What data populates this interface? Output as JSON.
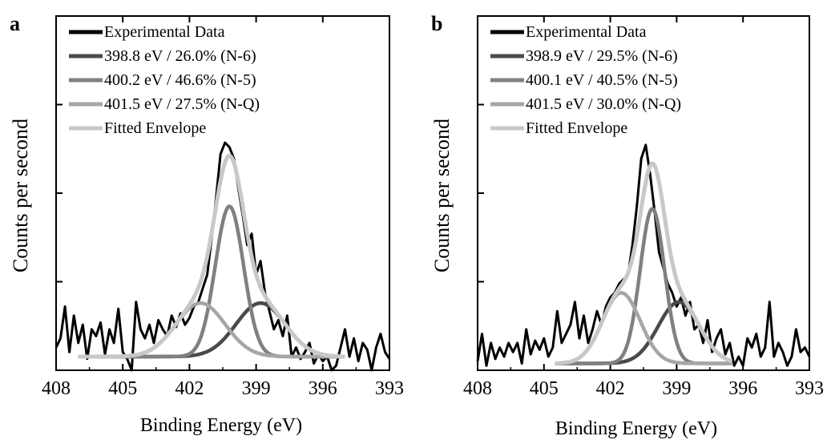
{
  "chart_data": [
    {
      "panel_label": "a",
      "type": "line",
      "xlabel": "Binding Energy (eV)",
      "ylabel": "Counts per second",
      "xlim": [
        408,
        393
      ],
      "x_reversed": true,
      "xticks": [
        408,
        405,
        402,
        399,
        396,
        393
      ],
      "y_ticks_shown": false,
      "ylim": [
        0,
        1.0
      ],
      "legend_position": "top-left",
      "series": [
        {
          "name": "Experimental Data",
          "color": "#000000",
          "x": [
            408.0,
            407.8,
            407.6,
            407.4,
            407.2,
            407.0,
            406.8,
            406.6,
            406.4,
            406.2,
            406.0,
            405.8,
            405.6,
            405.4,
            405.2,
            405.0,
            404.8,
            404.6,
            404.4,
            404.2,
            404.0,
            403.8,
            403.6,
            403.4,
            403.2,
            403.0,
            402.8,
            402.6,
            402.4,
            402.2,
            402.0,
            401.8,
            401.6,
            401.4,
            401.2,
            401.0,
            400.8,
            400.6,
            400.4,
            400.2,
            400.0,
            399.8,
            399.6,
            399.4,
            399.2,
            399.0,
            398.8,
            398.6,
            398.4,
            398.2,
            398.0,
            397.8,
            397.6,
            397.4,
            397.2,
            397.0,
            396.8,
            396.6,
            396.4,
            396.2,
            396.0,
            395.8,
            395.6,
            395.4,
            395.2,
            395.0,
            394.8,
            394.6,
            394.4,
            394.2,
            394.0,
            393.8,
            393.6,
            393.4,
            393.2,
            393.0
          ],
          "y": [
            0.1,
            0.14,
            0.28,
            0.08,
            0.24,
            0.12,
            0.2,
            0.05,
            0.18,
            0.15,
            0.21,
            0.07,
            0.18,
            0.12,
            0.27,
            0.08,
            0.05,
            -0.02,
            0.3,
            0.18,
            0.14,
            0.2,
            0.12,
            0.22,
            0.18,
            0.15,
            0.24,
            0.19,
            0.25,
            0.2,
            0.23,
            0.28,
            0.3,
            0.36,
            0.42,
            0.58,
            0.76,
            0.95,
            1.0,
            0.98,
            0.93,
            0.8,
            0.68,
            0.55,
            0.6,
            0.42,
            0.48,
            0.34,
            0.26,
            0.18,
            0.22,
            0.15,
            0.24,
            0.06,
            0.1,
            0.05,
            0.08,
            0.12,
            0.03,
            0.07,
            0.04,
            0.06,
            0.0,
            0.02,
            0.1,
            0.18,
            0.06,
            0.14,
            0.04,
            0.12,
            0.09,
            0.0,
            0.1,
            0.16,
            0.08,
            0.05
          ]
        },
        {
          "name": "398.8 eV / 26.0% (N-6)",
          "color": "#4a4a4a",
          "peak": 398.8,
          "amp": 0.235,
          "fwhm": 2.6,
          "base": 0.06
        },
        {
          "name": "400.2 eV / 46.6% (N-5)",
          "color": "#808080",
          "peak": 400.2,
          "amp": 0.66,
          "fwhm": 1.5,
          "base": 0.06
        },
        {
          "name": "401.5 eV / 27.5% (N-Q)",
          "color": "#a6a6a6",
          "peak": 401.5,
          "amp": 0.235,
          "fwhm": 2.6,
          "base": 0.06
        },
        {
          "name": "Fitted Envelope",
          "color": "#c8c8c8",
          "envelope": true,
          "range": [
            407.0,
            395.0
          ]
        }
      ]
    },
    {
      "panel_label": "b",
      "type": "line",
      "xlabel": "Binding Energy (eV)",
      "ylabel": "Counts per second",
      "xlim": [
        408,
        393
      ],
      "x_reversed": true,
      "xticks": [
        408,
        405,
        402,
        399,
        396,
        393
      ],
      "y_ticks_shown": false,
      "ylim": [
        0,
        1.0
      ],
      "legend_position": "top-left",
      "series": [
        {
          "name": "Experimental Data",
          "color": "#000000",
          "x": [
            408.0,
            407.8,
            407.6,
            407.4,
            407.2,
            407.0,
            406.8,
            406.6,
            406.4,
            406.2,
            406.0,
            405.8,
            405.6,
            405.4,
            405.2,
            405.0,
            404.8,
            404.6,
            404.4,
            404.2,
            404.0,
            403.8,
            403.6,
            403.4,
            403.2,
            403.0,
            402.8,
            402.6,
            402.4,
            402.2,
            402.0,
            401.8,
            401.6,
            401.4,
            401.2,
            401.0,
            400.8,
            400.6,
            400.4,
            400.2,
            400.0,
            399.8,
            399.6,
            399.4,
            399.2,
            399.0,
            398.8,
            398.6,
            398.4,
            398.2,
            398.0,
            397.8,
            397.6,
            397.4,
            397.2,
            397.0,
            396.8,
            396.6,
            396.4,
            396.2,
            396.0,
            395.8,
            395.6,
            395.4,
            395.2,
            395.0,
            394.8,
            394.6,
            394.4,
            394.2,
            394.0,
            393.8,
            393.6,
            393.4,
            393.2,
            393.0
          ],
          "y": [
            0.04,
            0.16,
            0.02,
            0.12,
            0.05,
            0.1,
            0.06,
            0.12,
            0.08,
            0.12,
            0.03,
            0.18,
            0.07,
            0.13,
            0.09,
            0.14,
            0.06,
            0.1,
            0.26,
            0.12,
            0.16,
            0.2,
            0.3,
            0.14,
            0.24,
            0.12,
            0.18,
            0.26,
            0.2,
            0.28,
            0.32,
            0.34,
            0.38,
            0.4,
            0.42,
            0.55,
            0.72,
            0.93,
            0.99,
            0.86,
            0.7,
            0.52,
            0.45,
            0.38,
            0.34,
            0.28,
            0.32,
            0.24,
            0.3,
            0.18,
            0.2,
            0.12,
            0.22,
            0.08,
            0.14,
            0.18,
            0.07,
            0.12,
            0.02,
            0.06,
            0.02,
            0.14,
            0.1,
            0.16,
            0.06,
            0.1,
            0.3,
            0.06,
            0.12,
            0.08,
            0.02,
            0.06,
            0.18,
            0.08,
            0.1,
            0.06
          ]
        },
        {
          "name": "398.9 eV / 29.5% (N-6)",
          "color": "#4a4a4a",
          "peak": 398.9,
          "amp": 0.27,
          "fwhm": 2.2,
          "base": 0.03
        },
        {
          "name": "400.1 eV / 40.5% (N-5)",
          "color": "#808080",
          "peak": 400.1,
          "amp": 0.68,
          "fwhm": 1.3,
          "base": 0.03
        },
        {
          "name": "401.5 eV / 30.0% (N-Q)",
          "color": "#a6a6a6",
          "peak": 401.5,
          "amp": 0.31,
          "fwhm": 2.0,
          "base": 0.03
        },
        {
          "name": "Fitted Envelope",
          "color": "#c8c8c8",
          "envelope": true,
          "range": [
            404.5,
            396.5
          ]
        }
      ]
    }
  ]
}
